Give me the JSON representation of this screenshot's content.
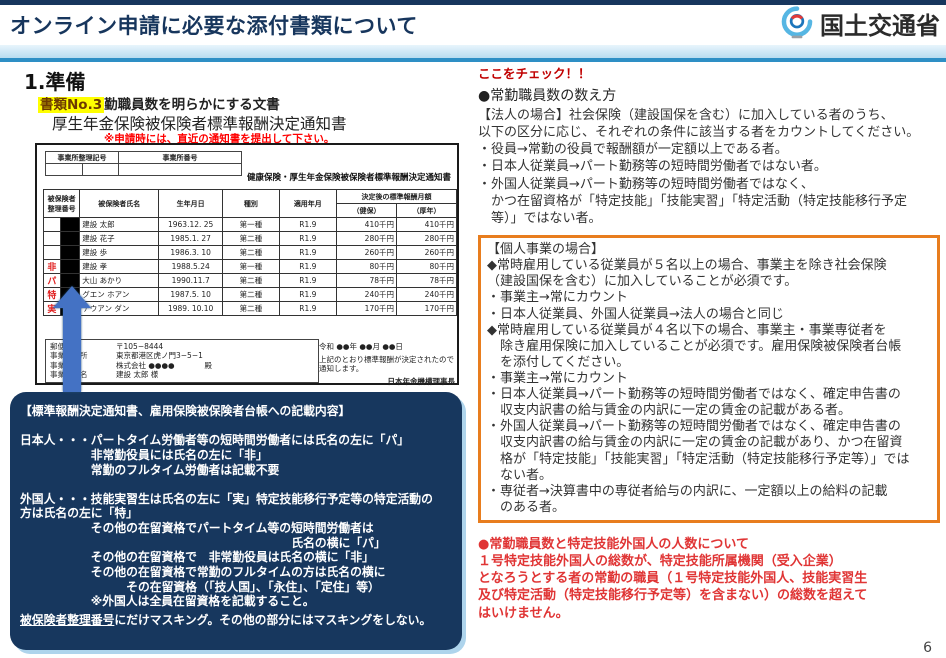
{
  "header": {
    "title": "オンライン申請に必要な添付書類について",
    "agency": "国土交通省"
  },
  "left": {
    "section_title": "1.準備",
    "doc_no": "書類No.3",
    "doc_no_desc": "勤職員数を明らかにする文書",
    "doc_title": "厚生年金保険被保険者標準報酬決定通知書",
    "doc_note": "※申請時には、直近の通知書を提出して下さい。"
  },
  "document": {
    "office_header": {
      "col1": "事業所整理記号",
      "col2": "事業所番号"
    },
    "form_title": "健康保険・厚生年金保険被保険者標準報酬決定通知書",
    "table": {
      "headers": {
        "insured1": "被保険者",
        "insured2": "整理番号",
        "name": "被保険者氏名",
        "birth": "生年月日",
        "type": "種別",
        "period": "適用年月",
        "monthly": "決定後の標準報酬月額",
        "kenpo": "（健保）",
        "kousei": "（厚年）"
      },
      "rows": [
        {
          "marker": "",
          "name": "建設 太郎",
          "birth": "1963.12. 25",
          "type": "第一種",
          "period": "R1.9",
          "kenpo": "410千円",
          "kousei": "410千円"
        },
        {
          "marker": "",
          "name": "建設 花子",
          "birth": "1985.1. 27",
          "type": "第二種",
          "period": "R1.9",
          "kenpo": "280千円",
          "kousei": "280千円"
        },
        {
          "marker": "",
          "name": "建設 歩",
          "birth": "1986.3. 10",
          "type": "第二種",
          "period": "R1.9",
          "kenpo": "260千円",
          "kousei": "260千円"
        },
        {
          "marker": "非",
          "name": "建設 孝",
          "birth": "1988.5.24",
          "type": "第一種",
          "period": "R1.9",
          "kenpo": "80千円",
          "kousei": "80千円"
        },
        {
          "marker": "パ",
          "name": "大山 あかり",
          "birth": "1990.11.7",
          "type": "第二種",
          "period": "R1.9",
          "kenpo": "78千円",
          "kousei": "78千円"
        },
        {
          "marker": "特",
          "name": "グエン ホアン",
          "birth": "1987.5. 10",
          "type": "第二種",
          "period": "R1.9",
          "kenpo": "240千円",
          "kousei": "240千円"
        },
        {
          "marker": "実",
          "name": "テウアン ダン",
          "birth": "1989. 10.10",
          "type": "第二種",
          "period": "R1.9",
          "kenpo": "170千円",
          "kousei": "170千円"
        }
      ]
    },
    "address": {
      "rows": [
        [
          "郵便番号",
          "〒105−8444"
        ],
        [
          "事業所住所",
          "東京都港区虎ノ門3−5−1"
        ],
        [
          "事業所名",
          "株式会社 ●●●●　　　　殿"
        ],
        [
          "事業主氏名",
          "建設 太郎 様"
        ]
      ],
      "date": "令和 ●●年 ●●月 ●●日",
      "notice": "上記のとおり標準報酬が決定されたので通知します。",
      "signer": "日本年金機構理事長"
    }
  },
  "navy_box": {
    "lines": [
      "【標準報酬決定通知書、雇用保険被保険者台帳への記載内容】",
      "",
      "日本人・・・パートタイム労働者等の短時間労働者には氏名の左に「パ」",
      "　　　　　　非常勤役員には氏名の左に「非」",
      "　　　　　　常勤のフルタイム労働者は記載不要",
      "",
      "外国人・・・技能実習生は氏名の左に「実」特定技能移行予定等の特定活動の",
      "方は氏名の左に「特」",
      "　　　　　　その他の在留資格でパートタイム等の短時間労働者は",
      "　　　　　　　　　　　　　　　　　　　　　　　氏名の横に「パ」",
      "　　　　　　その他の在留資格で　非常勤役員は氏名の横に「非」",
      "　　　　　　その他の在留資格で常勤のフルタイムの方は氏名の横に",
      "　　　　　　　　　その在留資格（「技人国」、「永住」、「定住」等）",
      "　　　　　　※外国人は全員在留資格を記載すること。",
      ""
    ],
    "masking_head": "被保険者整理番号",
    "masking_rest": "にだけマスキング。その他の部分にはマスキングをしない。"
  },
  "right": {
    "check": "ここをチェック！！",
    "heading": "●常勤職員数の数え方",
    "corp_lines": [
      "【法人の場合】社会保険（建設国保を含む）に加入している者のうち、",
      "以下の区分に応じ、それぞれの条件に該当する者をカウントしてください。",
      "・役員→常勤の役員で報酬額が一定額以上である者。",
      "・日本人従業員→パート勤務等の短時間労働者ではない者。",
      "・外国人従業員→パート勤務等の短時間労働者ではなく、",
      "　かつ在留資格が「特定技能」「技能実習」「特定活動（特定技能移行予定",
      "　等）」ではない者。"
    ],
    "individual_box_lines": [
      "【個人事業の場合】",
      "◆常時雇用している従業員が５名以上の場合、事業主を除き社会保険",
      "（建設国保を含む）に加入していることが必須です。",
      "・事業主→常にカウント",
      "・日本人従業員、外国人従業員→法人の場合と同じ",
      "◆常時雇用している従業員が４名以下の場合、事業主・事業専従者を",
      "　除き雇用保険に加入していることが必須です。雇用保険被保険者台帳",
      "　を添付してください。",
      "・事業主→常にカウント",
      "・日本人従業員→パート勤務等の短時間労働者ではなく、確定申告書の",
      "　収支内訳書の給与賃金の内訳に一定の賃金の記載がある者。",
      "・外国人従業員→パート勤務等の短時間労働者ではなく、確定申告書の",
      "　収支内訳書の給与賃金の内訳に一定の賃金の記載があり、かつ在留資",
      "　格が「特定技能」「技能実習」「特定活動（特定技能移行予定等）」では",
      "　ない者。",
      "・専従者→決算書中の専従者給与の内訳に、一定額以上の給料の記載",
      "　のある者。"
    ],
    "warning_lines": [
      "●常勤職員数と特定技能外国人の人数について",
      "１号特定技能外国人の総数が、特定技能所属機関（受入企業）",
      "となろうとする者の常勤の職員（１号特定技能外国人、技能実習生",
      "及び特定活動（特定技能移行予定等）を含まない）の総数を超えて",
      "はいけません。"
    ]
  },
  "page_number": "6"
}
